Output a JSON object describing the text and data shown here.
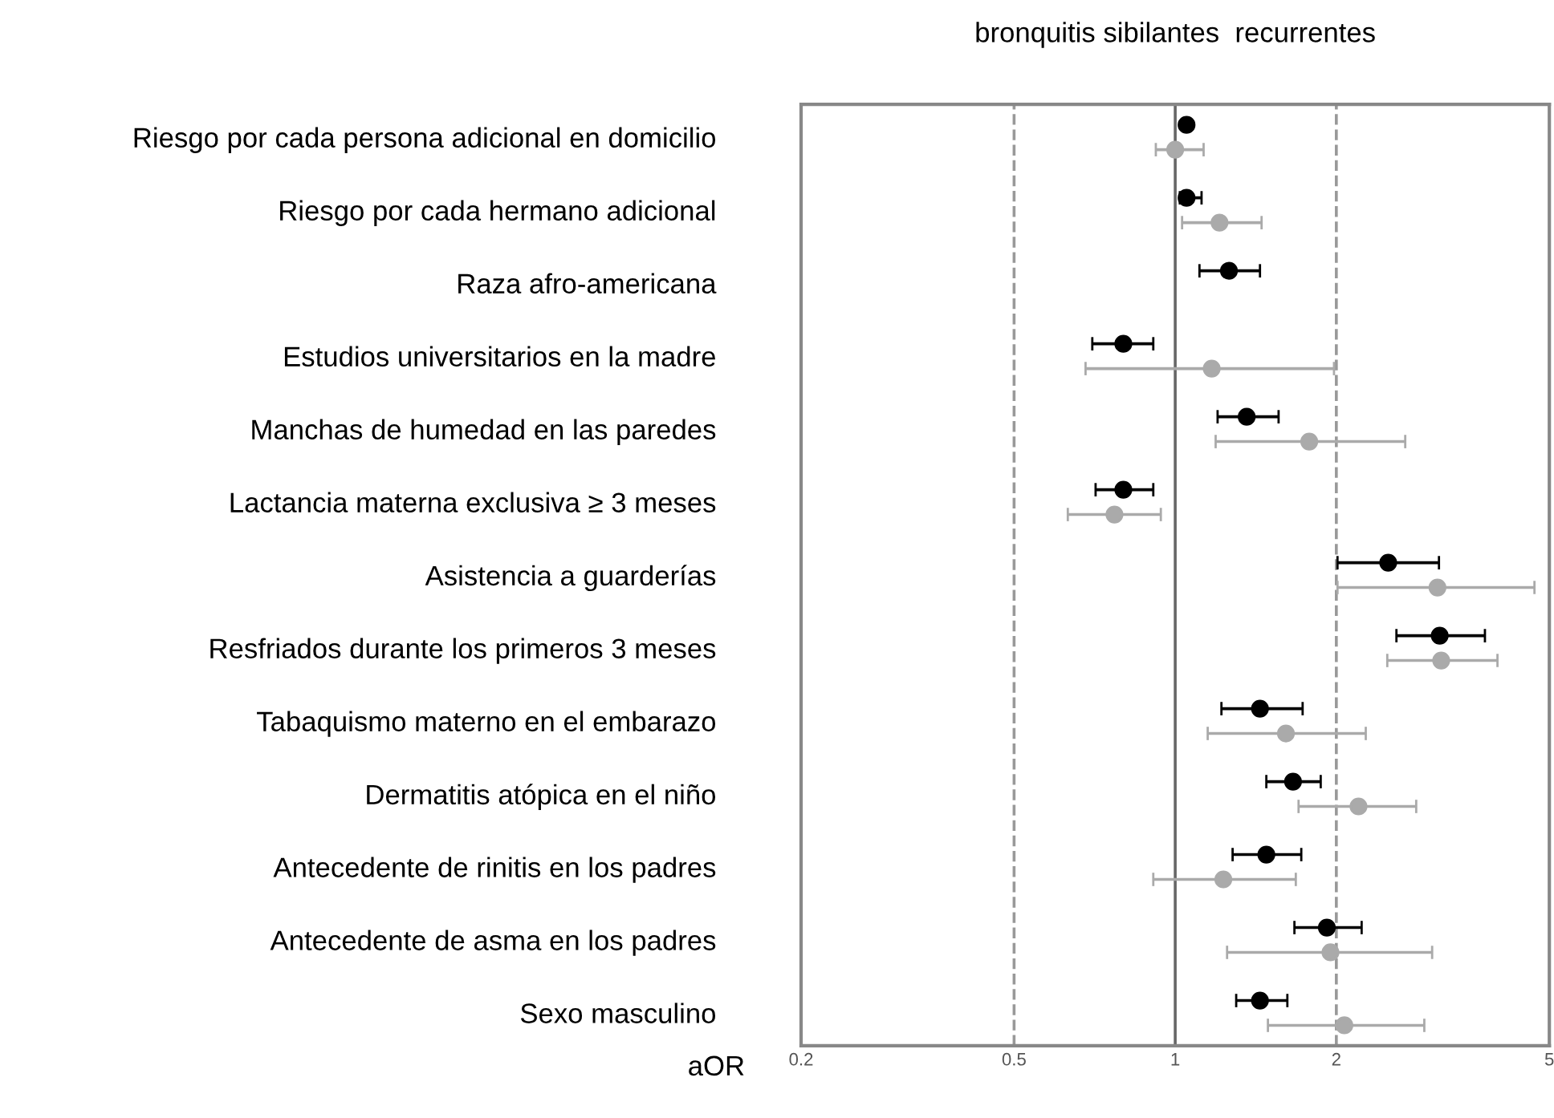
{
  "chart_data": {
    "type": "scatter",
    "title": "bronquitis sibilantes  recurrentes",
    "xlabel": "aOR",
    "categories": [
      "Riesgo por cada persona adicional en domicilio",
      "Riesgo por cada hermano adicional",
      "Raza afro-americana",
      "Estudios universitarios en la madre",
      "Manchas de humedad en las paredes",
      "Lactancia materna exclusiva ≥ 3 meses",
      "Asistencia a guarderías",
      "Resfriados durante los primeros 3 meses",
      "Tabaquismo materno en el embarazo",
      "Dermatitis atópica en el niño",
      "Antecedente de rinitis en los padres",
      "Antecedente de asma en los padres",
      "Sexo masculino"
    ],
    "series": [
      {
        "color": "#000000",
        "values": [
          1.05,
          1.05,
          1.26,
          0.8,
          1.36,
          0.8,
          2.5,
          3.12,
          1.44,
          1.66,
          1.48,
          1.92,
          1.44
        ],
        "errors": [
          [
            1.03,
            1.07
          ],
          [
            1.02,
            1.12
          ],
          [
            1.11,
            1.44
          ],
          [
            0.7,
            0.91
          ],
          [
            1.2,
            1.56
          ],
          [
            0.71,
            0.91
          ],
          [
            2.01,
            3.11
          ],
          [
            2.59,
            3.79
          ],
          [
            1.22,
            1.73
          ],
          [
            1.48,
            1.87
          ],
          [
            1.28,
            1.72
          ],
          [
            1.67,
            2.23
          ],
          [
            1.3,
            1.62
          ]
        ]
      },
      {
        "color": "#aaaaaa",
        "values": [
          1.0,
          1.21,
          null,
          1.17,
          1.78,
          0.77,
          3.09,
          3.14,
          1.61,
          2.2,
          1.23,
          1.95,
          2.07
        ],
        "errors": [
          [
            0.92,
            1.13
          ],
          [
            1.03,
            1.45
          ],
          null,
          [
            0.68,
            1.98
          ],
          [
            1.19,
            2.69
          ],
          [
            0.63,
            0.94
          ],
          [
            2.01,
            4.69
          ],
          [
            2.49,
            4.0
          ],
          [
            1.15,
            2.27
          ],
          [
            1.7,
            2.82
          ],
          [
            0.91,
            1.68
          ],
          [
            1.25,
            3.02
          ],
          [
            1.49,
            2.92
          ]
        ]
      }
    ],
    "orientation": "horizontal",
    "log": "x",
    "xlim": [
      0.2,
      5
    ],
    "xticks": [
      0.2,
      0.5,
      1,
      2,
      5
    ],
    "ref_lines": [
      {
        "axis": "x",
        "value": 0.5,
        "color": "#999999",
        "line_style": "dashed"
      },
      {
        "axis": "x",
        "value": 1,
        "color": "#666666",
        "line_style": "solid"
      },
      {
        "axis": "x",
        "value": 2,
        "color": "#999999",
        "line_style": "dashed"
      }
    ],
    "marker": "circle",
    "grid": false,
    "legend": false
  }
}
